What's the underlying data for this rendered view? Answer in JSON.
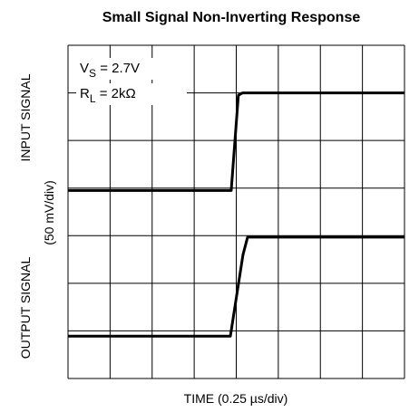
{
  "chart_data": {
    "type": "line",
    "title": "Small Signal Non-Inverting Response",
    "xlabel": "TIME (0.25 µs/div)",
    "ylabels": [
      "INPUT SIGNAL",
      "(50 mV/div)",
      "OUTPUT SIGNAL"
    ],
    "annotations": [
      {
        "main": "V",
        "sub": "S",
        "rest": " = 2.7V"
      },
      {
        "main": "R",
        "sub": "L",
        "rest": " = 2kΩ"
      }
    ],
    "xlim": [
      0,
      8
    ],
    "ylim": [
      0,
      7
    ],
    "grid": true,
    "series": [
      {
        "color": "#000000",
        "x": [
          0,
          3.88,
          4.05,
          4.15,
          8
        ],
        "values": [
          3.95,
          3.95,
          5.95,
          6.0,
          6.0
        ]
      },
      {
        "color": "#000000",
        "x": [
          0,
          3.86,
          4.16,
          4.27,
          8
        ],
        "values": [
          0.89,
          0.89,
          2.6,
          2.97,
          2.97
        ]
      }
    ]
  }
}
